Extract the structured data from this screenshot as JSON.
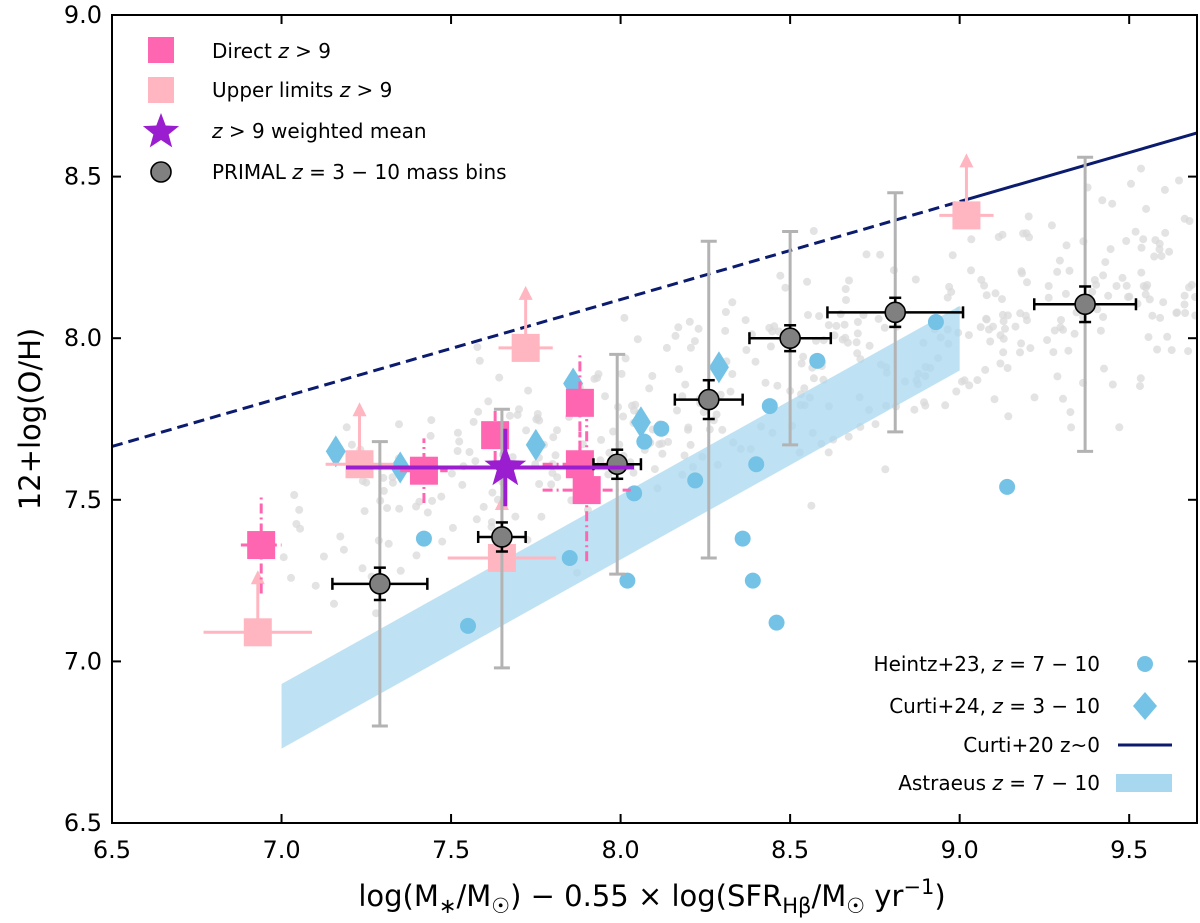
{
  "chart_data": {
    "type": "scatter",
    "xlabel": "log(M*/M⊙) − 0.55 × log(SFR_Hβ/M⊙ yr⁻¹)",
    "ylabel": "12+log(O/H)",
    "xlim": [
      6.5,
      9.7
    ],
    "ylim": [
      6.5,
      9.0
    ],
    "xticks": [
      "6.5",
      "7.0",
      "7.5",
      "8.0",
      "8.5",
      "9.0",
      "9.5"
    ],
    "yticks": [
      "6.5",
      "7.0",
      "7.5",
      "8.0",
      "8.5",
      "9.0"
    ],
    "legend_top": [
      {
        "label": "Direct z > 9"
      },
      {
        "label": "Upper limits z > 9"
      },
      {
        "label": "z > 9 weighted mean"
      },
      {
        "label": "PRIMAL z = 3 − 10 mass bins"
      }
    ],
    "legend_bottom": [
      {
        "label": "Heintz+23, z = 7 − 10"
      },
      {
        "label": "Curti+24, z = 3 − 10"
      },
      {
        "label": "Curti+20 z~0"
      },
      {
        "label": "Astraeus z = 7 − 10"
      }
    ],
    "colors": {
      "direct": "#ff66b2",
      "upper": "#ffb6c1",
      "mean": "#9a1ecf",
      "primal": "#808080",
      "heintz": "#74c3e6",
      "astraeus": "#a8d8ef",
      "curti20": "#0b1b6e",
      "background": "#d9d9d9"
    },
    "curti20": {
      "x": [
        6.5,
        9.7
      ],
      "y": [
        7.665,
        8.635
      ],
      "dashed_until_x": 9.0
    },
    "astraeus": {
      "x": [
        7.0,
        9.0
      ],
      "lower": [
        6.73,
        7.9
      ],
      "upper": [
        6.93,
        8.1
      ]
    },
    "direct": [
      {
        "x": 6.94,
        "y": 7.36,
        "xerr": 0.06,
        "yerr": 0.15
      },
      {
        "x": 7.42,
        "y": 7.59,
        "xerr": 0.07,
        "yerr": 0.1
      },
      {
        "x": 7.63,
        "y": 7.7,
        "xerr": 0.04,
        "yerr": 0.08
      },
      {
        "x": 7.88,
        "y": 7.8,
        "xerr": 0.03,
        "yerr": 0.15
      },
      {
        "x": 7.88,
        "y": 7.61,
        "xerr": 0.11,
        "yerr": 0.1
      },
      {
        "x": 7.9,
        "y": 7.53,
        "xerr": 0.13,
        "yerr": 0.22
      }
    ],
    "upper_limits": [
      {
        "x": 6.93,
        "y": 7.09,
        "xerr": 0.16
      },
      {
        "x": 7.23,
        "y": 7.61,
        "xerr": 0.1
      },
      {
        "x": 7.65,
        "y": 7.32,
        "xerr": 0.16
      },
      {
        "x": 7.72,
        "y": 7.97,
        "xerr": 0.08
      },
      {
        "x": 9.02,
        "y": 8.38,
        "xerr": 0.08
      }
    ],
    "mean": {
      "x": 7.66,
      "y": 7.6,
      "xerr_lo": 0.47,
      "xerr_hi": 0.38,
      "yerr_lo": 0.12,
      "yerr_hi": 0.12
    },
    "primal": [
      {
        "x": 7.29,
        "y": 7.24,
        "xerr": 0.14,
        "yerr": 0.05,
        "scatter_lo": 6.8,
        "scatter_hi": 7.68
      },
      {
        "x": 7.65,
        "y": 7.385,
        "xerr": 0.07,
        "yerr": 0.045,
        "scatter_lo": 6.98,
        "scatter_hi": 7.78
      },
      {
        "x": 7.99,
        "y": 7.61,
        "xerr": 0.07,
        "yerr": 0.045,
        "scatter_lo": 7.27,
        "scatter_hi": 7.95
      },
      {
        "x": 8.26,
        "y": 7.81,
        "xerr": 0.1,
        "yerr": 0.06,
        "scatter_lo": 7.32,
        "scatter_hi": 8.3
      },
      {
        "x": 8.5,
        "y": 8.0,
        "xerr": 0.12,
        "yerr": 0.04,
        "scatter_lo": 7.67,
        "scatter_hi": 8.33
      },
      {
        "x": 8.81,
        "y": 8.08,
        "xerr": 0.2,
        "yerr": 0.045,
        "scatter_lo": 7.71,
        "scatter_hi": 8.45
      },
      {
        "x": 9.37,
        "y": 8.105,
        "xerr": 0.15,
        "yerr": 0.055,
        "scatter_lo": 7.65,
        "scatter_hi": 8.56
      }
    ],
    "heintz": [
      [
        7.42,
        7.38
      ],
      [
        7.55,
        7.11
      ],
      [
        7.85,
        7.32
      ],
      [
        8.02,
        7.25
      ],
      [
        8.04,
        7.52
      ],
      [
        8.07,
        7.68
      ],
      [
        8.12,
        7.72
      ],
      [
        8.22,
        7.56
      ],
      [
        8.36,
        7.38
      ],
      [
        8.39,
        7.25
      ],
      [
        8.4,
        7.61
      ],
      [
        8.44,
        7.79
      ],
      [
        8.46,
        7.12
      ],
      [
        8.58,
        7.93
      ],
      [
        8.93,
        8.05
      ],
      [
        9.14,
        7.54
      ]
    ],
    "curti24": [
      [
        7.16,
        7.65
      ],
      [
        7.35,
        7.6
      ],
      [
        7.75,
        7.67
      ],
      [
        7.86,
        7.86
      ],
      [
        8.06,
        7.74
      ],
      [
        8.29,
        7.91
      ]
    ],
    "background_seed": 20240,
    "background_count": 420
  }
}
